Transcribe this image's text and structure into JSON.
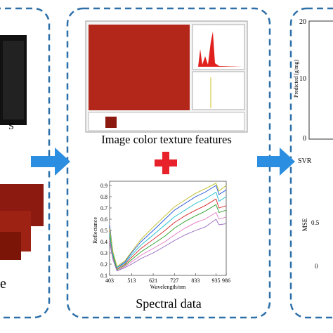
{
  "left_panel": {
    "image_label": "S",
    "caption": "e"
  },
  "middle_panel": {
    "caption_top": "Image color texture features",
    "caption_bottom": "Spectral data"
  },
  "spectral_chart": {
    "type": "line",
    "y_label": "Reflectance",
    "x_label": "Wavelength/nm",
    "x": [
      403,
      420,
      440,
      480,
      513,
      560,
      621,
      680,
      727,
      780,
      833,
      880,
      935,
      950,
      986
    ],
    "xlim": [
      403,
      986
    ],
    "xticks": [
      403,
      513,
      621,
      727,
      833,
      935,
      986
    ],
    "ylim": [
      0.1,
      0.9
    ],
    "yticks": [
      0.1,
      0.2,
      0.3,
      0.4,
      0.5,
      0.6,
      0.7,
      0.8,
      0.9
    ],
    "series": [
      {
        "color": "#1f4fd8",
        "values": [
          0.55,
          0.3,
          0.17,
          0.22,
          0.3,
          0.4,
          0.5,
          0.6,
          0.68,
          0.74,
          0.8,
          0.84,
          0.9,
          0.82,
          0.86
        ]
      },
      {
        "color": "#d62728",
        "values": [
          0.5,
          0.28,
          0.16,
          0.2,
          0.26,
          0.34,
          0.42,
          0.5,
          0.57,
          0.63,
          0.68,
          0.72,
          0.78,
          0.7,
          0.72
        ]
      },
      {
        "color": "#2ca02c",
        "values": [
          0.45,
          0.27,
          0.15,
          0.19,
          0.24,
          0.31,
          0.38,
          0.45,
          0.52,
          0.58,
          0.63,
          0.67,
          0.73,
          0.66,
          0.68
        ]
      },
      {
        "color": "#17becf",
        "values": [
          0.48,
          0.29,
          0.17,
          0.21,
          0.28,
          0.37,
          0.46,
          0.55,
          0.62,
          0.68,
          0.74,
          0.78,
          0.84,
          0.76,
          0.8
        ]
      },
      {
        "color": "#e377c2",
        "values": [
          0.42,
          0.25,
          0.14,
          0.18,
          0.22,
          0.28,
          0.34,
          0.4,
          0.46,
          0.52,
          0.57,
          0.6,
          0.66,
          0.6,
          0.62
        ]
      },
      {
        "color": "#bcbd22",
        "values": [
          0.52,
          0.31,
          0.18,
          0.23,
          0.31,
          0.42,
          0.53,
          0.63,
          0.71,
          0.77,
          0.83,
          0.87,
          0.92,
          0.85,
          0.9
        ]
      },
      {
        "color": "#9467bd",
        "values": [
          0.4,
          0.24,
          0.14,
          0.17,
          0.2,
          0.25,
          0.3,
          0.36,
          0.41,
          0.46,
          0.5,
          0.53,
          0.6,
          0.55,
          0.56
        ]
      }
    ]
  },
  "right_panel": {
    "y_label": "Predicted (g/mg)",
    "tick_top": "20",
    "tick_mid": "10",
    "tick_bottom": "0",
    "model_label": "SVR",
    "mse_label": "MSE",
    "mse_tick": "0.5",
    "mse_tick_bottom": "0"
  }
}
